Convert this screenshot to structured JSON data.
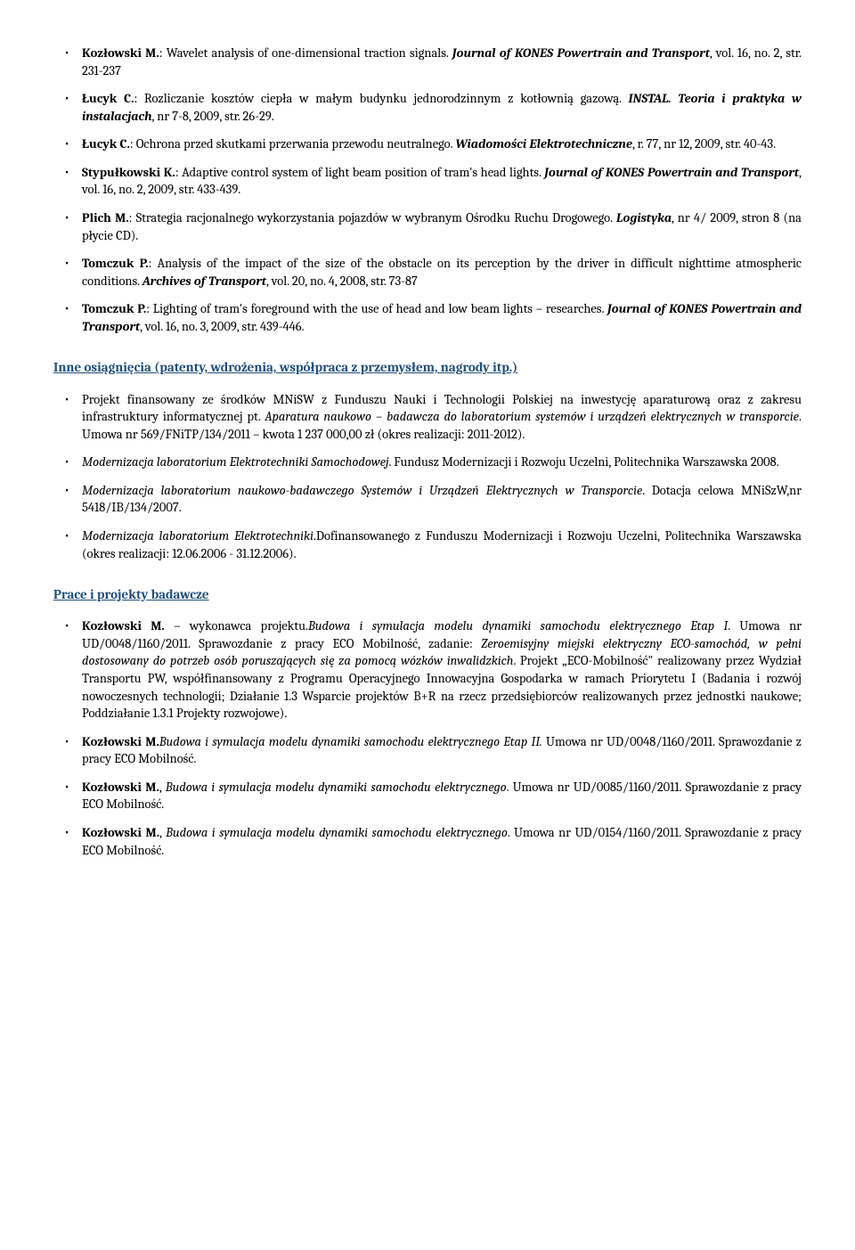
{
  "pubs": [
    {
      "html": "<b>Kozłowski M.</b>: Wavelet analysis of one-dimensional traction signals. <span class='bi'>Journal of KONES Powertrain and Transport</span>, vol. 16, no. 2, str. 231-237"
    },
    {
      "html": "<b>Łucyk C.</b>: Rozliczanie kosztów ciepła w małym budynku jednorodzinnym z kotłownią gazową. <span class='bi'>INSTAL. Teoria i praktyka w instalacjach</span>, nr 7-8, 2009, str. 26-29."
    },
    {
      "html": "<b>Łucyk C.</b>: Ochrona przed skutkami przerwania przewodu neutralnego. <span class='bi'>Wiadomości Elektrotechniczne</span>, r. 77, nr 12, 2009, str. 40-43."
    },
    {
      "html": "<b>Stypułkowski K.</b>: Adaptive control system of light beam position of tram's head lights. <span class='bi'>Journal of KONES Powertrain and Transport</span>, vol. 16, no. 2, 2009, str. 433-439."
    },
    {
      "html": "<b>Plich M.</b>: Strategia racjonalnego wykorzystania pojazdów w wybranym Ośrodku Ruchu Drogowego. <span class='bi'>Logistyka</span>, nr 4/ 2009, stron 8 (na płycie CD)."
    },
    {
      "html": "<b>Tomczuk P.</b>: Analysis of the impact of the size of the obstacle on its perception by the driver in difficult nighttime atmospheric conditions. <span class='bi'>Archives of Transport</span>, vol. 20, no. 4, 2008, str. 73-87"
    },
    {
      "html": "<b>Tomczuk P.</b>: Lighting of tram's foreground with the use of head and low beam lights – researches. <span class='bi'>Journal of KONES Powertrain and Transport</span>, vol. 16, no. 3, 2009, str. 439-446."
    }
  ],
  "section1_title": "Inne osiągnięcia (patenty, wdrożenia, współpraca z przemysłem, nagrody itp.)",
  "achievements": [
    {
      "html": "Projekt finansowany ze środków MNiSW z Funduszu Nauki i Technologii Polskiej na inwestycję aparaturową oraz z zakresu infrastruktury informatycznej pt. <i>Aparatura naukowo – badawcza do laboratorium systemów i urządzeń elektrycznych w transporcie</i>. Umowa nr 569/FNiTP/134/2011 – kwota 1 237 000,00 zł (okres realizacji: 2011-2012)."
    },
    {
      "html": "<i>Modernizacja laboratorium Elektrotechniki Samochodowej</i>. Fundusz Modernizacji i Rozwoju Uczelni, Politechnika Warszawska 2008."
    },
    {
      "html": "<i>Modernizacja laboratorium naukowo-badawczego Systemów i Urządzeń Elektrycznych w Transporcie</i>. Dotacja celowa MNiSzW,nr 5418/IB/134/2007."
    },
    {
      "html": "<i>Modernizacja laboratorium Elektrotechniki</i>.Dofinansowanego z Funduszu Modernizacji i Rozwoju Uczelni, Politechnika Warszawska (okres realizacji: 12.06.2006 - 31.12.2006)."
    }
  ],
  "section2_title": "Prace i projekty badawcze",
  "projects": [
    {
      "html": "<b>Kozłowski M.</b> – wykonawca projektu.<i>Budowa i symulacja modelu dynamiki samochodu elektrycznego Etap I</i>. Umowa nr UD/0048/1160/2011. Sprawozdanie z pracy ECO Mobilność, zadanie: <i>Zeroemisyjny miejski elektryczny ECO-samochód, w pełni dostosowany do potrzeb osób poruszających się za pomocą wózków inwalidzkich</i>. Projekt „ECO-Mobilność\" realizowany przez Wydział Transportu PW, współfinansowany z Programu Operacyjnego Innowacyjna Gospodarka w ramach Priorytetu I (Badania i rozwój nowoczesnych technologii; Działanie 1.3 Wsparcie projektów B+R na rzecz przedsiębiorców realizowanych przez jednostki naukowe; Poddziałanie 1.3.1 Projekty rozwojowe)."
    },
    {
      "html": "<b>Kozłowski M.</b><i>Budowa i symulacja modelu dynamiki samochodu elektrycznego Etap II.</i> Umowa nr UD/0048/1160/2011. Sprawozdanie z pracy ECO Mobilność."
    },
    {
      "html": "<b>Kozłowski M.</b>, <i>Budowa i symulacja modelu dynamiki samochodu elektrycznego</i>. Umowa nr UD/0085/1160/2011. Sprawozdanie z pracy ECO Mobilność."
    },
    {
      "html": "<b>Kozłowski M.</b>, <i>Budowa i symulacja modelu dynamiki samochodu elektrycznego</i>. Umowa nr UD/0154/1160/2011. Sprawozdanie z pracy ECO Mobilność."
    }
  ]
}
